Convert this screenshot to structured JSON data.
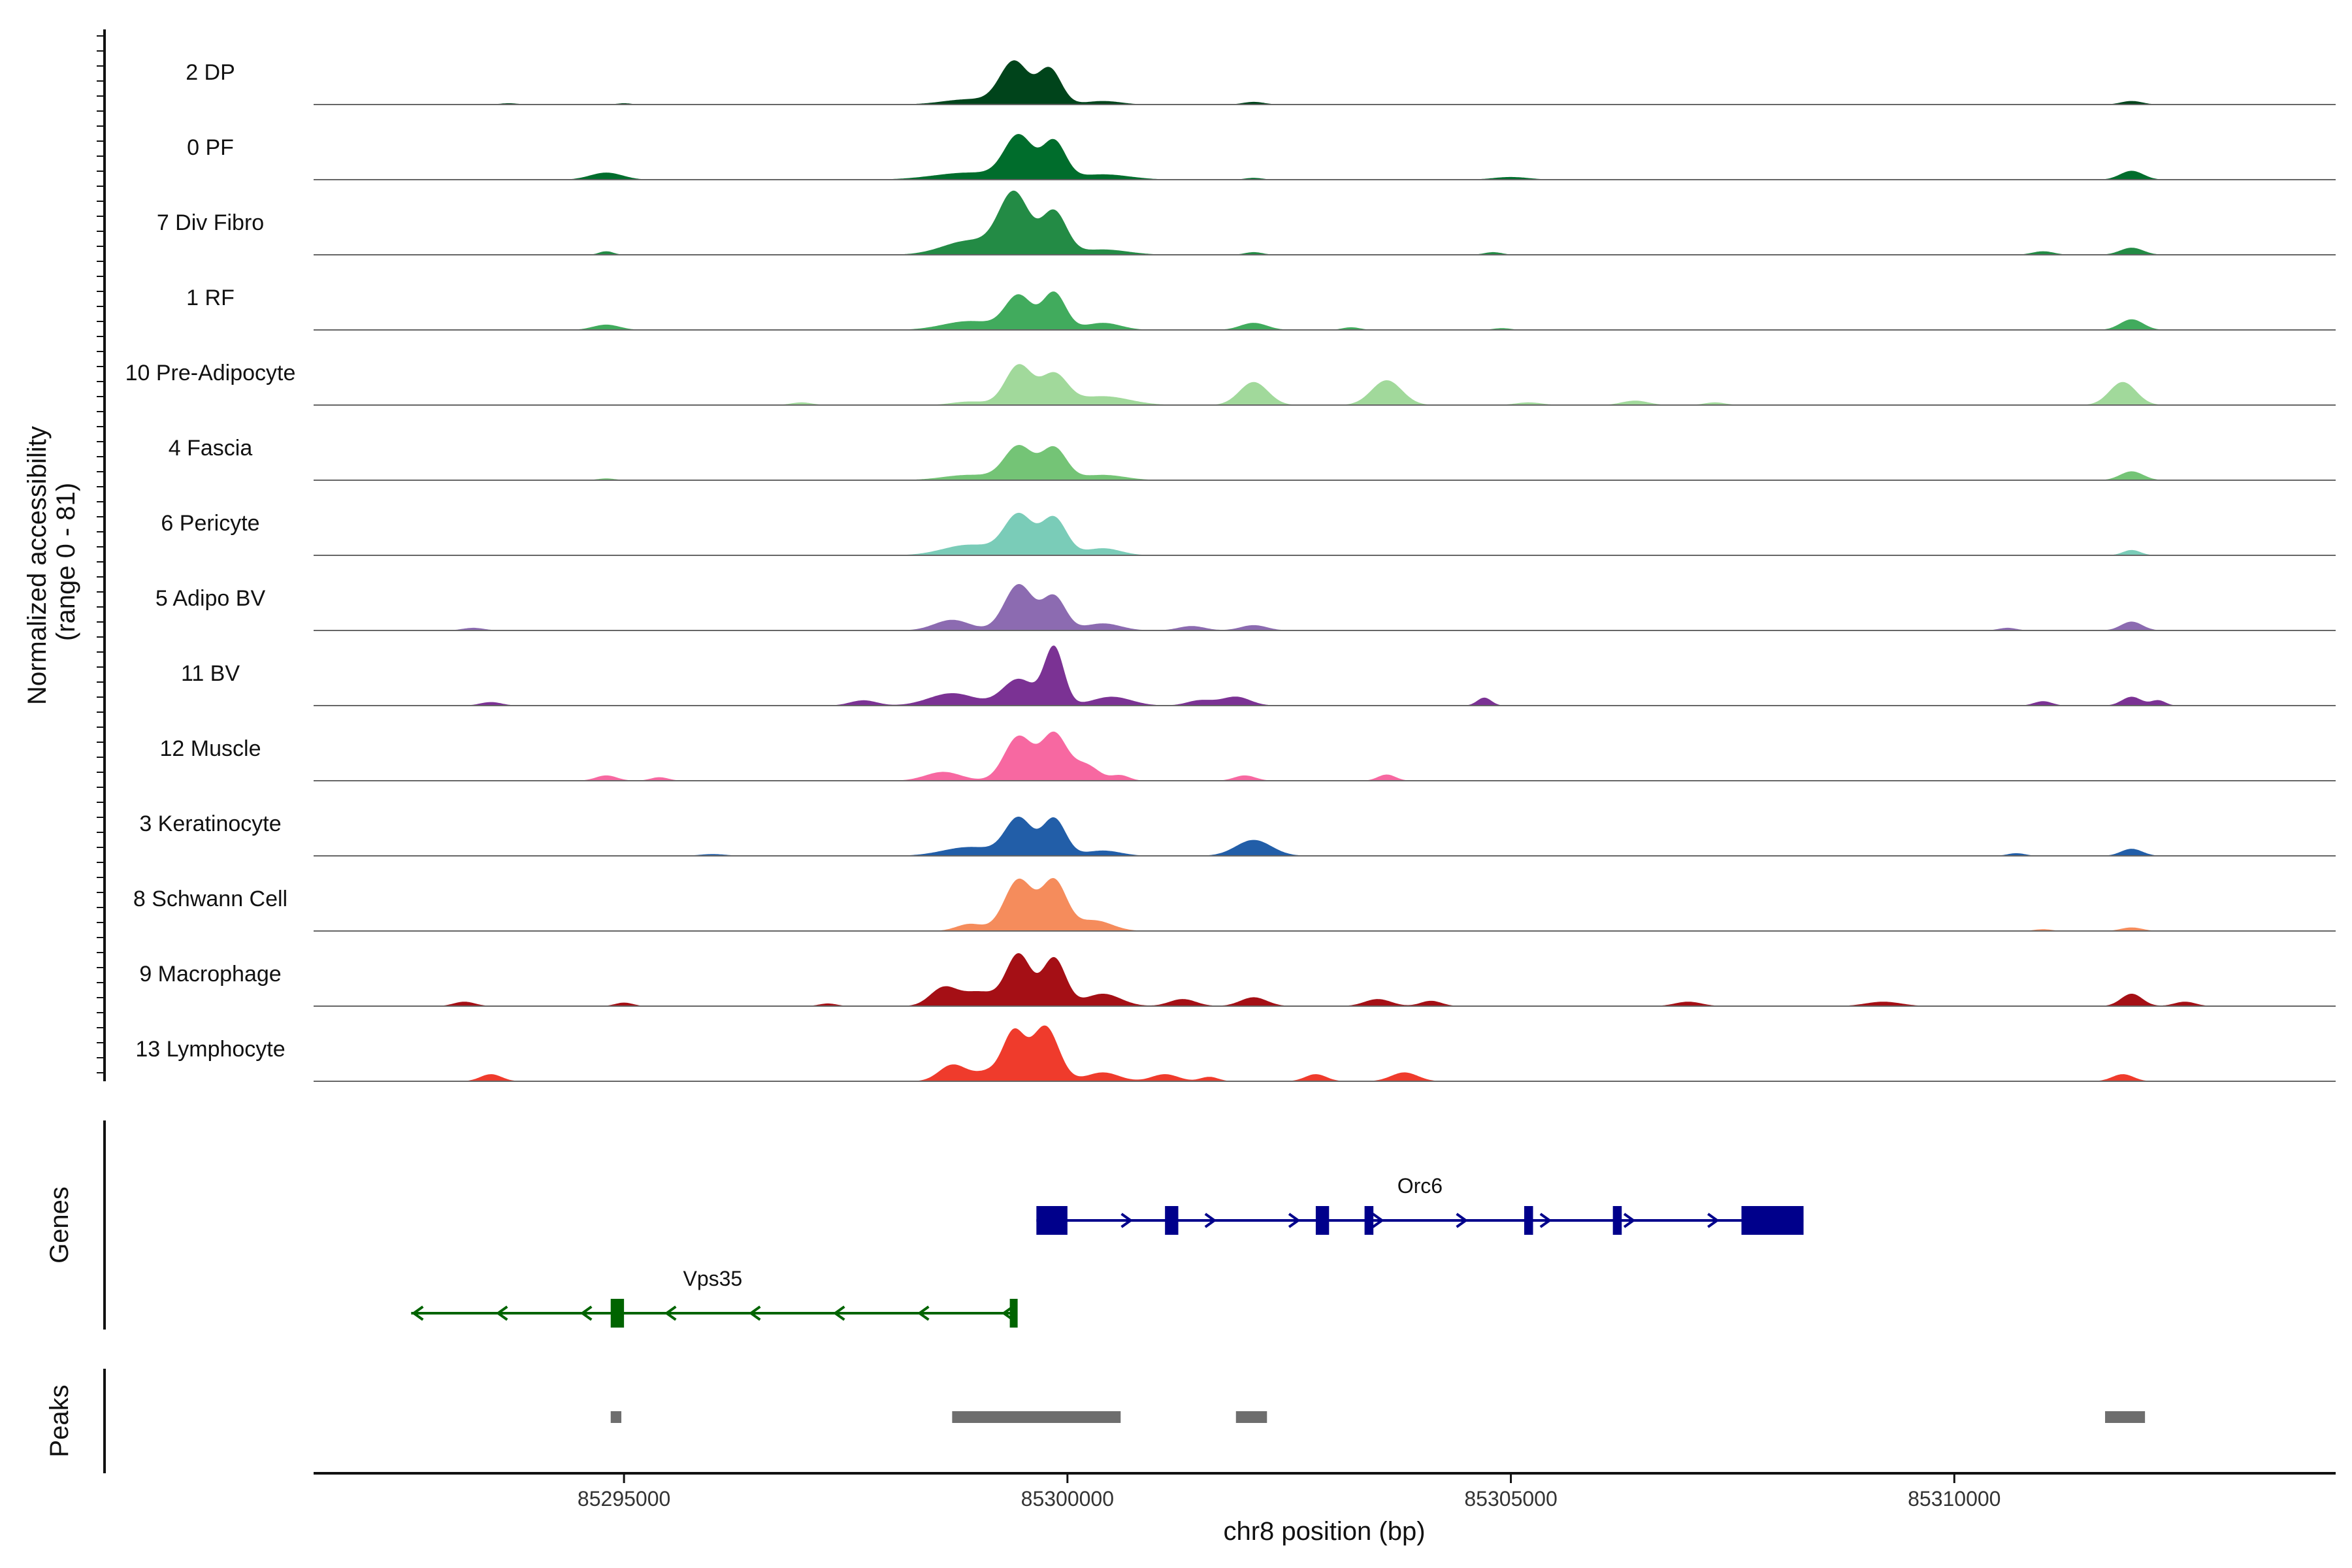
{
  "chart_data": {
    "type": "area",
    "region": {
      "chrom": "chr8",
      "start": 85291500,
      "end": 85314300
    },
    "ylabel_line1": "Normalized accessibility",
    "ylabel_line2": "(range 0 - 81)",
    "xlabel": "chr8 position (bp)",
    "x_ticks": [
      85295000,
      85300000,
      85305000,
      85310000
    ],
    "x_tick_labels": [
      "85295000",
      "85300000",
      "85305000",
      "85310000"
    ],
    "ylim": [
      0,
      81
    ],
    "tracks": [
      {
        "name": "2 DP",
        "color": "#00441b",
        "peaks": [
          [
            85299400,
            48,
            160
          ],
          [
            85299800,
            40,
            130
          ],
          [
            85298900,
            6,
            300
          ],
          [
            85300400,
            4,
            200
          ],
          [
            85302100,
            3,
            120
          ],
          [
            85312000,
            4,
            120
          ],
          [
            85293700,
            1.5,
            100
          ],
          [
            85295000,
            1.5,
            80
          ]
        ]
      },
      {
        "name": "0 PF",
        "color": "#006d2c",
        "peaks": [
          [
            85299450,
            48,
            160
          ],
          [
            85299850,
            42,
            130
          ],
          [
            85298900,
            8,
            400
          ],
          [
            85300400,
            6,
            300
          ],
          [
            85294800,
            8,
            180
          ],
          [
            85305000,
            3,
            200
          ],
          [
            85312000,
            10,
            130
          ],
          [
            85302100,
            2,
            100
          ]
        ]
      },
      {
        "name": "7 Div Fibro",
        "color": "#238b45",
        "peaks": [
          [
            85299400,
            68,
            170
          ],
          [
            85299850,
            48,
            140
          ],
          [
            85298900,
            16,
            300
          ],
          [
            85300400,
            6,
            280
          ],
          [
            85294800,
            4,
            80
          ],
          [
            85302100,
            3,
            100
          ],
          [
            85304800,
            3,
            100
          ],
          [
            85311000,
            4,
            120
          ],
          [
            85312000,
            8,
            130
          ]
        ]
      },
      {
        "name": "1 RF",
        "color": "#41ab5d",
        "peaks": [
          [
            85299450,
            38,
            150
          ],
          [
            85299850,
            42,
            130
          ],
          [
            85298900,
            10,
            300
          ],
          [
            85300400,
            8,
            200
          ],
          [
            85294800,
            6,
            150
          ],
          [
            85302100,
            8,
            150
          ],
          [
            85303200,
            3,
            100
          ],
          [
            85312000,
            12,
            130
          ],
          [
            85304900,
            2,
            100
          ]
        ]
      },
      {
        "name": "10 Pre-Adipocyte",
        "color": "#a1d99b",
        "peaks": [
          [
            85299450,
            45,
            150
          ],
          [
            85299850,
            34,
            150
          ],
          [
            85300400,
            10,
            300
          ],
          [
            85298900,
            4,
            200
          ],
          [
            85302100,
            26,
            160
          ],
          [
            85303600,
            28,
            170
          ],
          [
            85306400,
            5,
            150
          ],
          [
            85307300,
            3,
            120
          ],
          [
            85311900,
            26,
            150
          ],
          [
            85297000,
            3,
            120
          ],
          [
            85305200,
            3,
            150
          ]
        ]
      },
      {
        "name": "4 Fascia",
        "color": "#74c476",
        "peaks": [
          [
            85299450,
            38,
            160
          ],
          [
            85299850,
            36,
            140
          ],
          [
            85298900,
            6,
            300
          ],
          [
            85300400,
            6,
            250
          ],
          [
            85312000,
            10,
            130
          ],
          [
            85294800,
            2,
            100
          ]
        ]
      },
      {
        "name": "6 Pericyte",
        "color": "#7accb8",
        "peaks": [
          [
            85299450,
            45,
            160
          ],
          [
            85299850,
            42,
            140
          ],
          [
            85298900,
            12,
            300
          ],
          [
            85300400,
            8,
            200
          ],
          [
            85312000,
            6,
            100
          ]
        ]
      },
      {
        "name": "5 Adipo BV",
        "color": "#8c6bb1",
        "peaks": [
          [
            85299450,
            52,
            160
          ],
          [
            85299850,
            38,
            130
          ],
          [
            85298700,
            12,
            200
          ],
          [
            85300400,
            8,
            200
          ],
          [
            85301400,
            5,
            150
          ],
          [
            85302100,
            6,
            150
          ],
          [
            85293300,
            3,
            120
          ],
          [
            85312000,
            10,
            120
          ],
          [
            85310600,
            3,
            100
          ]
        ]
      },
      {
        "name": "11 BV",
        "color": "#7b3294",
        "peaks": [
          [
            85299850,
            65,
            110
          ],
          [
            85299450,
            30,
            180
          ],
          [
            85298700,
            14,
            260
          ],
          [
            85300500,
            10,
            220
          ],
          [
            85301500,
            6,
            150
          ],
          [
            85301900,
            10,
            160
          ],
          [
            85304700,
            9,
            80
          ],
          [
            85293500,
            4,
            120
          ],
          [
            85297700,
            6,
            150
          ],
          [
            85311000,
            5,
            100
          ],
          [
            85312000,
            10,
            110
          ],
          [
            85312300,
            6,
            80
          ]
        ]
      },
      {
        "name": "12 Muscle",
        "color": "#f768a1",
        "peaks": [
          [
            85299450,
            50,
            160
          ],
          [
            85299850,
            52,
            140
          ],
          [
            85300200,
            18,
            150
          ],
          [
            85298600,
            10,
            200
          ],
          [
            85294800,
            6,
            120
          ],
          [
            85295400,
            4,
            100
          ],
          [
            85302000,
            6,
            120
          ],
          [
            85303600,
            7,
            100
          ],
          [
            85300600,
            6,
            100
          ]
        ]
      },
      {
        "name": "3 Keratinocyte",
        "color": "#225ea8",
        "peaks": [
          [
            85299450,
            42,
            150
          ],
          [
            85299850,
            42,
            130
          ],
          [
            85298900,
            10,
            300
          ],
          [
            85300400,
            6,
            200
          ],
          [
            85302100,
            18,
            200
          ],
          [
            85312000,
            8,
            120
          ],
          [
            85310700,
            3,
            100
          ],
          [
            85296000,
            2,
            150
          ]
        ]
      },
      {
        "name": "8 Schwann Cell",
        "color": "#f58c5c",
        "peaks": [
          [
            85299450,
            58,
            160
          ],
          [
            85299850,
            56,
            140
          ],
          [
            85300300,
            12,
            200
          ],
          [
            85298900,
            8,
            150
          ],
          [
            85312000,
            4,
            120
          ],
          [
            85311000,
            2,
            100
          ]
        ]
      },
      {
        "name": "9 Macrophage",
        "color": "#a50f15",
        "peaks": [
          [
            85299450,
            58,
            140
          ],
          [
            85299850,
            54,
            130
          ],
          [
            85298600,
            20,
            150
          ],
          [
            85299000,
            16,
            200
          ],
          [
            85300400,
            14,
            200
          ],
          [
            85301300,
            8,
            150
          ],
          [
            85302100,
            10,
            150
          ],
          [
            85303500,
            8,
            150
          ],
          [
            85304100,
            6,
            120
          ],
          [
            85293200,
            5,
            120
          ],
          [
            85295000,
            4,
            100
          ],
          [
            85307000,
            5,
            150
          ],
          [
            85309200,
            5,
            200
          ],
          [
            85312000,
            14,
            120
          ],
          [
            85312600,
            5,
            120
          ],
          [
            85297300,
            3,
            100
          ]
        ]
      },
      {
        "name": "13 Lymphocyte",
        "color": "#ef3b2c",
        "peaks": [
          [
            85299400,
            50,
            120
          ],
          [
            85299750,
            62,
            150
          ],
          [
            85298700,
            18,
            150
          ],
          [
            85299150,
            12,
            200
          ],
          [
            85300400,
            10,
            180
          ],
          [
            85301100,
            8,
            150
          ],
          [
            85302800,
            8,
            120
          ],
          [
            85303800,
            10,
            150
          ],
          [
            85293500,
            8,
            120
          ],
          [
            85311900,
            8,
            120
          ],
          [
            85301600,
            5,
            100
          ]
        ]
      }
    ],
    "genes": [
      {
        "name": "Orc6",
        "strand": "+",
        "color": "#00008b",
        "start": 85299650,
        "end": 85308300,
        "exons": [
          [
            85299650,
            85300000
          ],
          [
            85301100,
            85301250
          ],
          [
            85302800,
            85302950
          ],
          [
            85303350,
            85303450
          ],
          [
            85305150,
            85305250
          ],
          [
            85306150,
            85306250
          ],
          [
            85307600,
            85308300
          ]
        ]
      },
      {
        "name": "Vps35",
        "strand": "-",
        "color": "#006400",
        "start": 85292600,
        "end": 85299400,
        "exons": [
          [
            85294850,
            85295000
          ],
          [
            85299350,
            85299400
          ]
        ]
      }
    ],
    "peak_regions": [
      [
        85294850,
        85294970
      ],
      [
        85298700,
        85300600
      ],
      [
        85301900,
        85302250
      ],
      [
        85311700,
        85312150
      ]
    ]
  }
}
